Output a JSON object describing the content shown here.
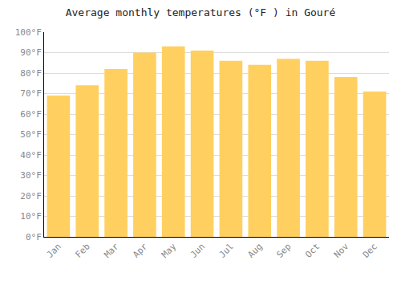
{
  "chart_data": {
    "type": "bar",
    "title": "Average monthly temperatures (°F ) in Gouré",
    "categories": [
      "Jan",
      "Feb",
      "Mar",
      "Apr",
      "May",
      "Jun",
      "Jul",
      "Aug",
      "Sep",
      "Oct",
      "Nov",
      "Dec"
    ],
    "values": [
      69,
      74,
      82,
      90,
      93,
      91,
      86,
      84,
      87,
      86,
      78,
      71
    ],
    "color": "#FFD060",
    "ylim": [
      0,
      100
    ],
    "yticks": [
      {
        "value": 0,
        "label": "0°F"
      },
      {
        "value": 10,
        "label": "10°F"
      },
      {
        "value": 20,
        "label": "20°F"
      },
      {
        "value": 30,
        "label": "30°F"
      },
      {
        "value": 40,
        "label": "40°F"
      },
      {
        "value": 50,
        "label": "50°F"
      },
      {
        "value": 60,
        "label": "60°F"
      },
      {
        "value": 70,
        "label": "70°F"
      },
      {
        "value": 80,
        "label": "80°F"
      },
      {
        "value": 90,
        "label": "90°F"
      },
      {
        "value": 100,
        "label": "100°F"
      }
    ],
    "grid": true
  }
}
